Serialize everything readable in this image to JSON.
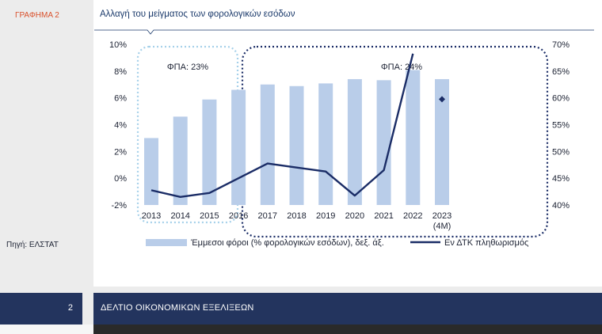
{
  "page": {
    "graph_label": "ΓΡΑΦΗΜΑ 2",
    "source": "Πηγή: ΕΛΣΤΑΤ",
    "page_number": "2",
    "footer_title": "ΔΕΛΤΙΟ ΟΙΚΟΝΟΜΙΚΩΝ ΕΞΕΛΙΞΕΩΝ"
  },
  "colors": {
    "bars": "#b9cde9",
    "line": "#1a2c66",
    "marker": "#1a2c66",
    "box_light": "#a6d1ea",
    "box_dark": "#1a2c66",
    "accent": "#d9502b",
    "footer": "#23345e"
  },
  "chart_data": {
    "type": "bar",
    "title": "Αλλαγή του μείγματος των φορολογικών εσόδων",
    "categories": [
      "2013",
      "2014",
      "2015",
      "2016",
      "2017",
      "2018",
      "2019",
      "2020",
      "2021",
      "2022",
      "2023 (4M)"
    ],
    "y_left": {
      "ticks": [
        "-2%",
        "0%",
        "2%",
        "4%",
        "6%",
        "8%",
        "10%"
      ],
      "ylim": [
        -2,
        10
      ]
    },
    "y_right": {
      "ticks": [
        "40%",
        "45%",
        "50%",
        "55%",
        "60%",
        "65%",
        "70%"
      ],
      "ylim": [
        40,
        70
      ]
    },
    "grid": false,
    "legend_position": "bottom",
    "series": [
      {
        "name": "Έμμεσοι φόροι (% φορολογικών εσόδων), δεξ. άξ.",
        "type": "bar",
        "axis": "right",
        "values": [
          52.5,
          56.5,
          59.7,
          61.5,
          62.5,
          62.2,
          62.7,
          63.5,
          63.3,
          65.2,
          63.5
        ]
      },
      {
        "name": "Εν ΔΤΚ πληθωρισμός",
        "type": "line",
        "axis": "left",
        "values": [
          -0.9,
          -1.4,
          -1.1,
          0.0,
          1.1,
          0.8,
          0.5,
          -1.3,
          0.6,
          9.3,
          null
        ]
      },
      {
        "name": "",
        "type": "marker",
        "axis": "left",
        "values": [
          null,
          null,
          null,
          null,
          null,
          null,
          null,
          null,
          null,
          null,
          5.9
        ]
      }
    ],
    "annotations": [
      "ΦΠΑ: 23%",
      "ΦΠΑ: 24%"
    ]
  }
}
